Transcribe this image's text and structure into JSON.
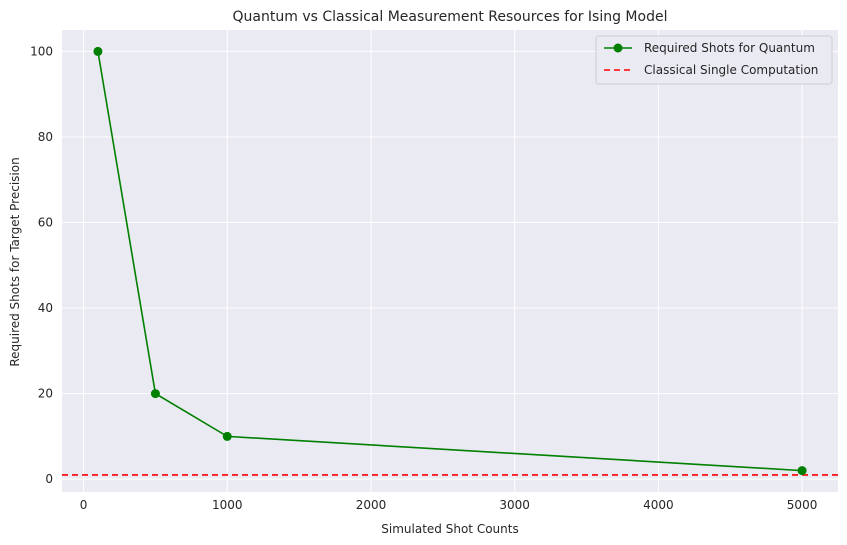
{
  "chart_data": {
    "type": "line",
    "title": "Quantum vs Classical Measurement Resources for Ising Model",
    "xlabel": "Simulated Shot Counts",
    "ylabel": "Required Shots for Target Precision",
    "xlim": [
      -150,
      5250
    ],
    "ylim": [
      -3,
      105
    ],
    "xticks": [
      0,
      1000,
      2000,
      3000,
      4000,
      5000
    ],
    "yticks": [
      0,
      20,
      40,
      60,
      80,
      100
    ],
    "grid": true,
    "legend_position": "top-right",
    "series": [
      {
        "name": "Required Shots for Quantum",
        "style": "solid-line-with-markers",
        "color": "#008000",
        "x": [
          100,
          500,
          1000,
          5000
        ],
        "y": [
          100,
          20,
          10,
          2
        ]
      }
    ],
    "reference_lines": [
      {
        "name": "Classical Single Computation",
        "orientation": "horizontal",
        "style": "dashed",
        "color": "#ff0000",
        "y": 1
      }
    ],
    "background_color": "#eaeaf2",
    "grid_color": "#ffffff"
  }
}
